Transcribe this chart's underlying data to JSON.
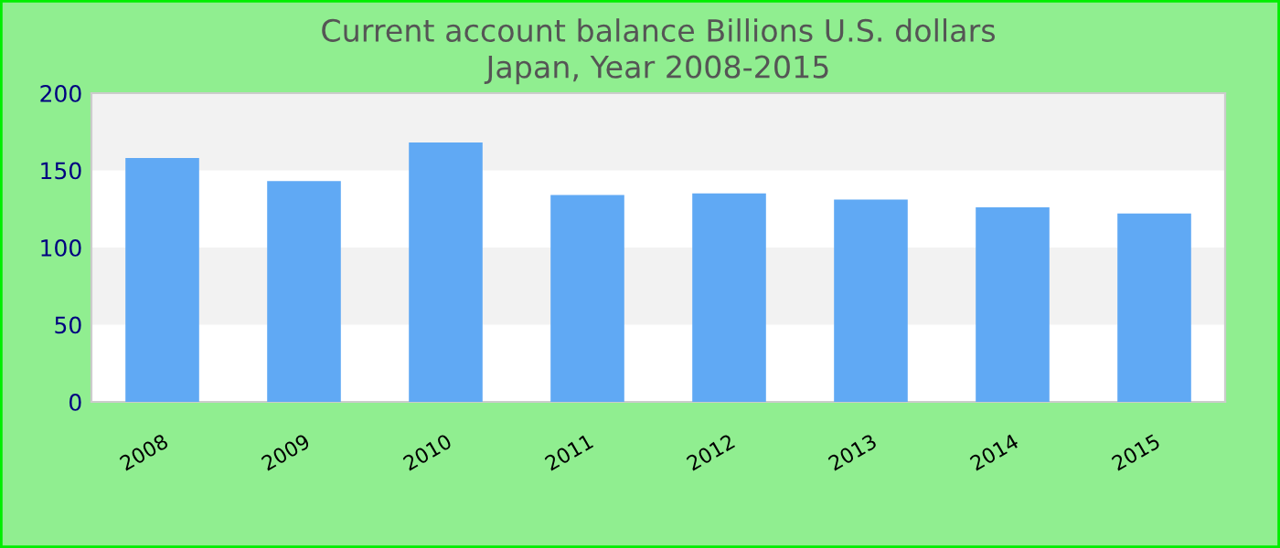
{
  "chart_data": {
    "type": "bar",
    "title": "Current account balance Billions U.S. dollars\nJapan, Year 2008-2015",
    "categories": [
      "2008",
      "2009",
      "2010",
      "2011",
      "2012",
      "2013",
      "2014",
      "2015"
    ],
    "values": [
      158,
      143,
      168,
      134,
      135,
      131,
      126,
      122
    ],
    "color": "#60a9f4",
    "ylim": [
      0,
      200
    ],
    "yticks": [
      0,
      50,
      100,
      150,
      200
    ],
    "bands": [
      {
        "axis": "y",
        "from": 50,
        "to": 100,
        "color": "#f2f2f2"
      },
      {
        "axis": "y",
        "from": 150,
        "to": 200,
        "color": "#f2f2f2"
      }
    ],
    "grid": false,
    "legend": false
  }
}
